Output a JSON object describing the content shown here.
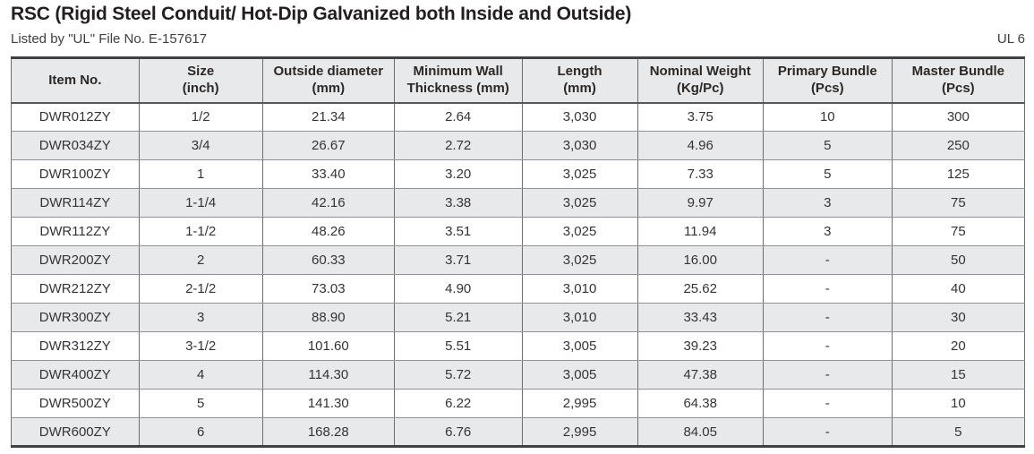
{
  "header": {
    "title": "RSC (Rigid Steel Conduit/ Hot-Dip Galvanized both Inside and Outside)",
    "subtitle": "Listed by \"UL\" File No. E-157617",
    "standard": "UL 6"
  },
  "colors": {
    "row_stripe": "#e8e9ea",
    "border_dark": "#414042",
    "border_light": "#909295",
    "text": "#363336"
  },
  "table": {
    "columns": [
      "Item No.",
      "Size\n(inch)",
      "Outside diameter\n(mm)",
      "Minimum Wall\nThickness (mm)",
      "Length\n(mm)",
      "Nominal Weight\n(Kg/Pc)",
      "Primary Bundle\n(Pcs)",
      "Master Bundle\n(Pcs)"
    ],
    "rows": [
      [
        "DWR012ZY",
        "1/2",
        "21.34",
        "2.64",
        "3,030",
        "3.75",
        "10",
        "300"
      ],
      [
        "DWR034ZY",
        "3/4",
        "26.67",
        "2.72",
        "3,030",
        "4.96",
        "5",
        "250"
      ],
      [
        "DWR100ZY",
        "1",
        "33.40",
        "3.20",
        "3,025",
        "7.33",
        "5",
        "125"
      ],
      [
        "DWR114ZY",
        "1-1/4",
        "42.16",
        "3.38",
        "3,025",
        "9.97",
        "3",
        "75"
      ],
      [
        "DWR112ZY",
        "1-1/2",
        "48.26",
        "3.51",
        "3,025",
        "11.94",
        "3",
        "75"
      ],
      [
        "DWR200ZY",
        "2",
        "60.33",
        "3.71",
        "3,025",
        "16.00",
        "-",
        "50"
      ],
      [
        "DWR212ZY",
        "2-1/2",
        "73.03",
        "4.90",
        "3,010",
        "25.62",
        "-",
        "40"
      ],
      [
        "DWR300ZY",
        "3",
        "88.90",
        "5.21",
        "3,010",
        "33.43",
        "-",
        "30"
      ],
      [
        "DWR312ZY",
        "3-1/2",
        "101.60",
        "5.51",
        "3,005",
        "39.23",
        "-",
        "20"
      ],
      [
        "DWR400ZY",
        "4",
        "114.30",
        "5.72",
        "3,005",
        "47.38",
        "-",
        "15"
      ],
      [
        "DWR500ZY",
        "5",
        "141.30",
        "6.22",
        "2,995",
        "64.38",
        "-",
        "10"
      ],
      [
        "DWR600ZY",
        "6",
        "168.28",
        "6.76",
        "2,995",
        "84.05",
        "-",
        "5"
      ]
    ]
  }
}
